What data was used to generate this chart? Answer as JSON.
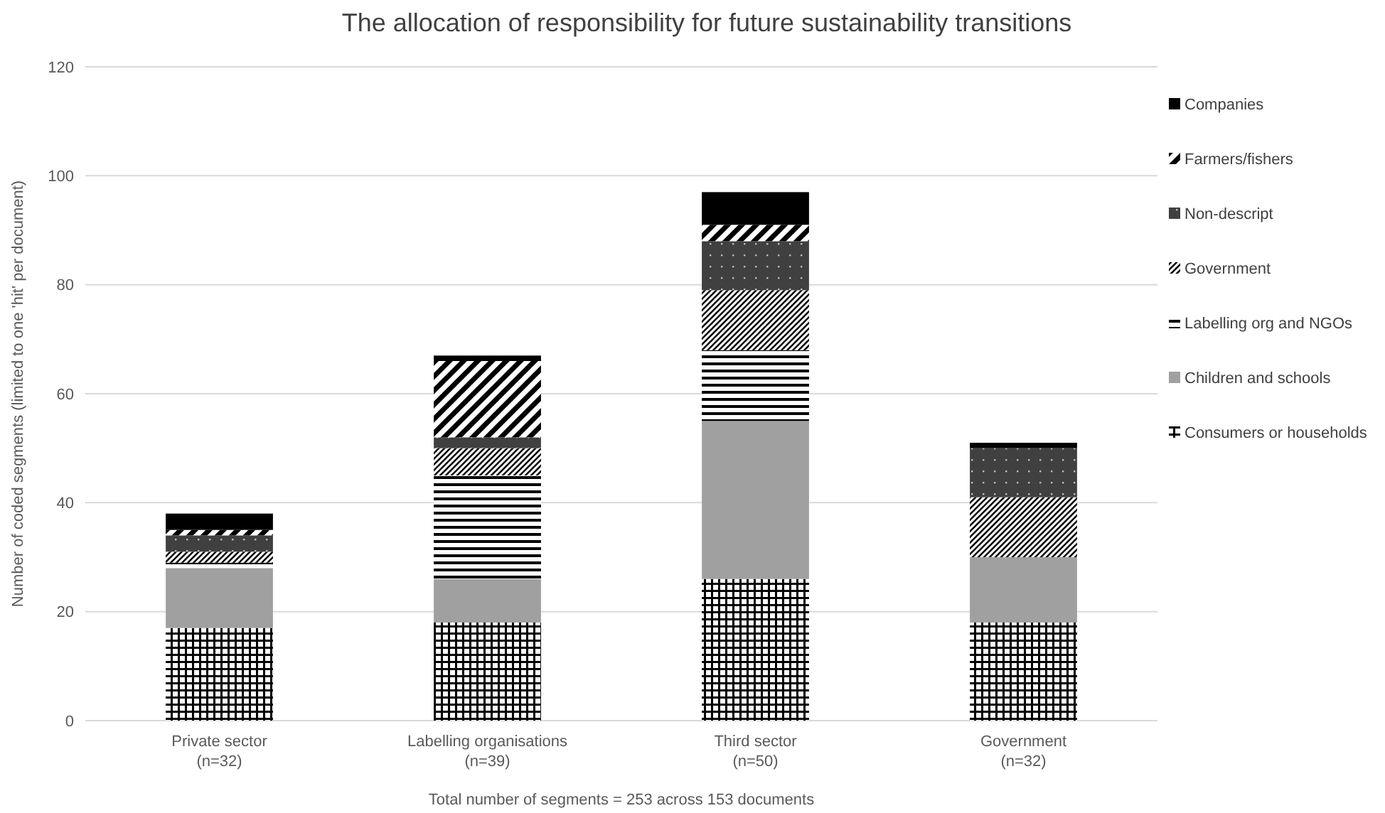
{
  "chart_data": {
    "type": "bar",
    "stacked": true,
    "title": "The allocation of responsibility for future sustainability transitions",
    "xlabel": "Total number of segments = 253 across 153 documents",
    "ylabel": "Number of coded segments (limited to one 'hit' per document)",
    "categories": [
      "Private sector\n(n=32)",
      "Labelling organisations\n(n=39)",
      "Third sector\n(n=50)",
      "Government\n(n=32)"
    ],
    "ylim": [
      0,
      120
    ],
    "yticks": [
      0,
      20,
      40,
      60,
      80,
      100,
      120
    ],
    "grid": "y",
    "legend": "right",
    "series": [
      {
        "name": "Consumers or households",
        "color": "#000000",
        "values": [
          17,
          18,
          26,
          18
        ]
      },
      {
        "name": "Children and schools",
        "color": "#a0a0a0",
        "values": [
          11,
          8,
          29,
          12
        ]
      },
      {
        "name": "Labelling org and NGOs",
        "color": "#000000",
        "values": [
          1,
          19,
          13,
          0
        ]
      },
      {
        "name": "Government",
        "color": "#000000",
        "values": [
          2,
          5,
          11,
          11
        ]
      },
      {
        "name": "Non-descript",
        "color": "#404040",
        "values": [
          3,
          2,
          9,
          9
        ]
      },
      {
        "name": "Farmers/fishers",
        "color": "#000000",
        "values": [
          1,
          14,
          3,
          0
        ]
      },
      {
        "name": "Companies",
        "color": "#000000",
        "values": [
          3,
          1,
          6,
          1
        ]
      }
    ]
  }
}
